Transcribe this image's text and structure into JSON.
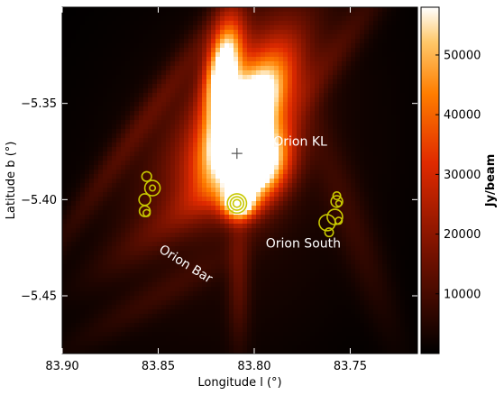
{
  "chart_data": {
    "type": "heatmap",
    "xlabel": "Longitude l (°)",
    "ylabel": "Latitude b (°)",
    "xlim": [
      83.9,
      83.715
    ],
    "ylim": [
      -5.48,
      -5.3
    ],
    "x_ticks": [
      83.9,
      83.85,
      83.8,
      83.75
    ],
    "x_tick_labels": [
      "83.90",
      "83.85",
      "83.80",
      "83.75"
    ],
    "y_ticks": [
      -5.35,
      -5.4,
      -5.45
    ],
    "y_tick_labels": [
      "−5.35",
      "−5.40",
      "−5.45"
    ],
    "colorbar": {
      "label": "Jy/beam",
      "range": [
        0,
        58000
      ],
      "ticks": [
        10000,
        20000,
        30000,
        40000,
        50000
      ],
      "tick_labels": [
        "10000",
        "20000",
        "30000",
        "40000",
        "50000"
      ],
      "colormap": "gist_heat"
    },
    "annotations": [
      {
        "text": "Orion KL",
        "x": 83.79,
        "y": -5.372,
        "rotation": 0
      },
      {
        "text": "Orion South",
        "x": 83.794,
        "y": -5.425,
        "rotation": 0
      },
      {
        "text": "Orion Bar",
        "x": 83.85,
        "y": -5.427,
        "rotation": 32
      }
    ],
    "marker": {
      "symbol": "+",
      "x": 83.809,
      "y": -5.376
    },
    "circles": [
      {
        "x": 83.856,
        "y": -5.388,
        "r": 0.0025
      },
      {
        "x": 83.853,
        "y": -5.394,
        "r": 0.004
      },
      {
        "x": 83.853,
        "y": -5.394,
        "r": 0.0015
      },
      {
        "x": 83.857,
        "y": -5.4,
        "r": 0.003
      },
      {
        "x": 83.857,
        "y": -5.406,
        "r": 0.0028
      },
      {
        "x": 83.856,
        "y": -5.407,
        "r": 0.0018
      },
      {
        "x": 83.809,
        "y": -5.402,
        "r": 0.005
      },
      {
        "x": 83.809,
        "y": -5.402,
        "r": 0.0035
      },
      {
        "x": 83.809,
        "y": -5.402,
        "r": 0.002
      },
      {
        "x": 83.757,
        "y": -5.398,
        "r": 0.002
      },
      {
        "x": 83.757,
        "y": -5.401,
        "r": 0.003
      },
      {
        "x": 83.756,
        "y": -5.402,
        "r": 0.0015
      },
      {
        "x": 83.758,
        "y": -5.409,
        "r": 0.004
      },
      {
        "x": 83.762,
        "y": -5.412,
        "r": 0.0042
      },
      {
        "x": 83.756,
        "y": -5.411,
        "r": 0.0018
      },
      {
        "x": 83.761,
        "y": -5.417,
        "r": 0.0022
      }
    ],
    "emission_components": [
      {
        "x": 83.805,
        "y": -5.36,
        "sx": 0.01,
        "sy": 0.025,
        "theta": 30,
        "amp": 70000
      },
      {
        "x": 83.816,
        "y": -5.33,
        "sx": 0.006,
        "sy": 0.018,
        "theta": 10,
        "amp": 55000
      },
      {
        "x": 83.796,
        "y": -5.385,
        "sx": 0.01,
        "sy": 0.015,
        "theta": 30,
        "amp": 55000
      },
      {
        "x": 83.808,
        "y": -5.402,
        "sx": 0.006,
        "sy": 0.006,
        "theta": 0,
        "amp": 45000
      },
      {
        "x": 83.812,
        "y": -5.35,
        "sx": 0.016,
        "sy": 0.045,
        "theta": 35,
        "amp": 20000
      },
      {
        "x": 83.858,
        "y": -5.36,
        "sx": 0.005,
        "sy": 0.06,
        "theta": 35,
        "amp": 9000
      },
      {
        "x": 83.765,
        "y": -5.335,
        "sx": 0.006,
        "sy": 0.05,
        "theta": 35,
        "amp": 8000
      },
      {
        "x": 83.808,
        "y": -5.44,
        "sx": 0.004,
        "sy": 0.025,
        "theta": 0,
        "amp": 10000
      },
      {
        "x": 83.835,
        "y": -5.405,
        "sx": 0.007,
        "sy": 0.04,
        "theta": 55,
        "amp": 8000
      },
      {
        "x": 83.75,
        "y": -5.41,
        "sx": 0.007,
        "sy": 0.045,
        "theta": -20,
        "amp": 6000
      },
      {
        "x": 83.85,
        "y": -5.45,
        "sx": 0.006,
        "sy": 0.04,
        "theta": 60,
        "amp": 5000
      },
      {
        "x": 83.81,
        "y": -5.39,
        "sx": 0.05,
        "sy": 0.07,
        "theta": 20,
        "amp": 5000
      }
    ]
  }
}
